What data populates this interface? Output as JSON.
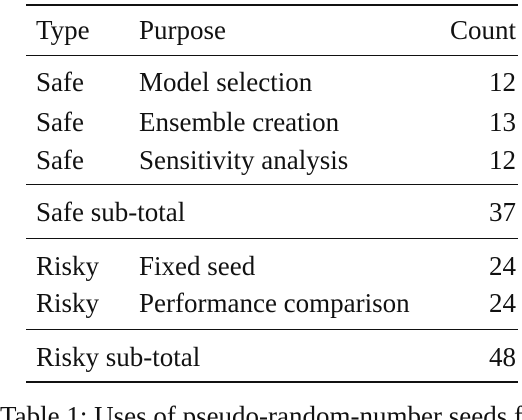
{
  "table": {
    "header": {
      "type": "Type",
      "purpose": "Purpose",
      "count": "Count"
    },
    "safe_rows": [
      {
        "type": "Safe",
        "purpose": "Model selection",
        "count": "12"
      },
      {
        "type": "Safe",
        "purpose": "Ensemble creation",
        "count": "13"
      },
      {
        "type": "Safe",
        "purpose": "Sensitivity analysis",
        "count": "12"
      }
    ],
    "safe_subtotal": {
      "label": "Safe sub-total",
      "count": "37"
    },
    "risky_rows": [
      {
        "type": "Risky",
        "purpose": "Fixed seed",
        "count": "24"
      },
      {
        "type": "Risky",
        "purpose": "Performance comparison",
        "count": "24"
      }
    ],
    "risky_subtotal": {
      "label": "Risky sub-total",
      "count": "48"
    }
  },
  "caption": {
    "text": "Table 1: Uses of pseudo-random-number seeds f"
  }
}
